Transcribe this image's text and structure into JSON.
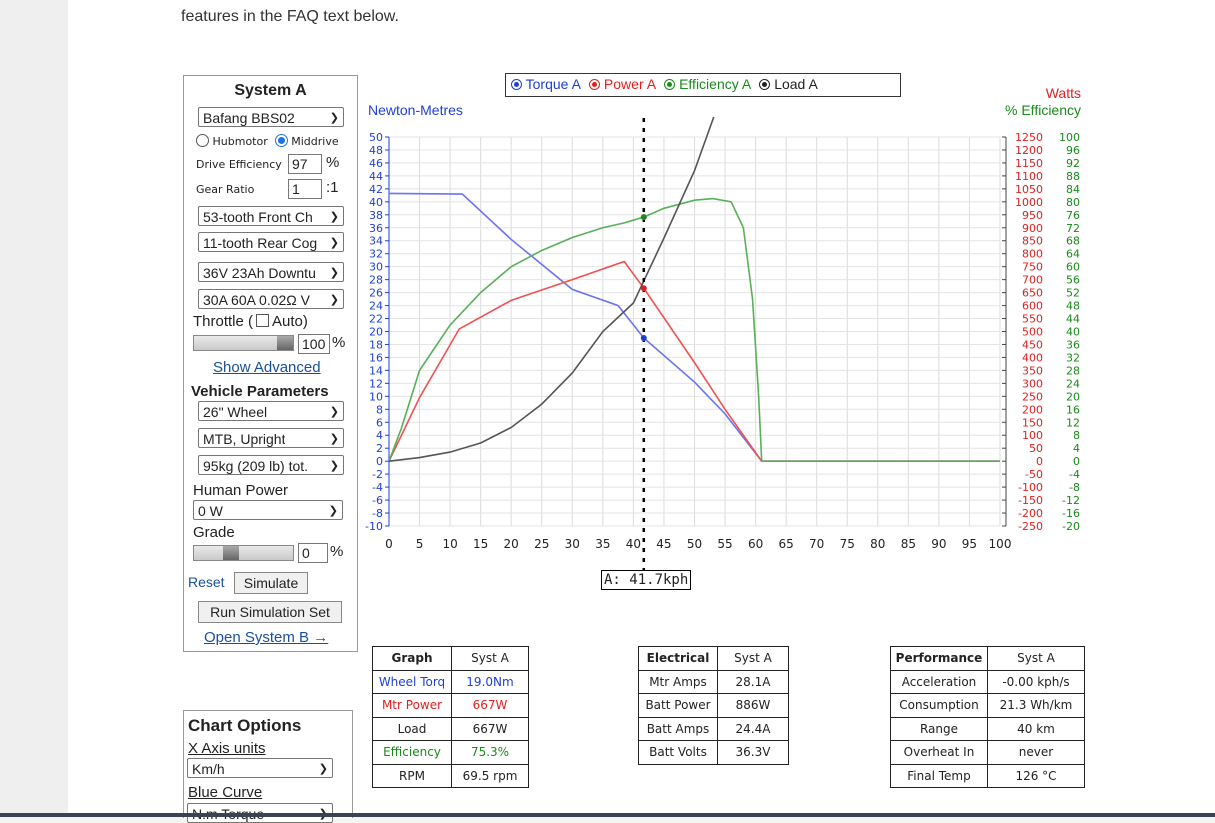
{
  "page": {
    "intro_text": "features in the FAQ text below."
  },
  "system_panel": {
    "title": "System A",
    "motor": "Bafang BBS02",
    "hubmotor_label": "Hubmotor",
    "middrive_label": "Middrive",
    "drive_efficiency_label": "Drive Efficiency",
    "drive_efficiency_value": "97",
    "percent": "%",
    "gear_ratio_label": "Gear Ratio",
    "gear_ratio_value": "1",
    "gear_ratio_suffix": ":1",
    "front_chainring": "53-tooth Front Ch",
    "rear_cog": "11-tooth Rear Cog",
    "battery": "36V 23Ah Downtu",
    "controller": "30A 60A 0.02Ω V",
    "throttle_label": "Throttle (",
    "throttle_auto_label": "Auto)",
    "throttle_value": "100",
    "show_advanced": "Show Advanced",
    "vehicle_parameters_heading": "Vehicle Parameters",
    "wheel": "26\"  Wheel",
    "frame": "MTB, Upright",
    "weight": "95kg (209 lb) tot.",
    "human_power_label": "Human Power",
    "human_power": "0 W",
    "grade_label": "Grade",
    "grade_value": "0",
    "reset": "Reset",
    "simulate": "Simulate",
    "run_simulation_set": "Run Simulation Set",
    "open_system_b": "Open System B →"
  },
  "chart_options": {
    "title": "Chart Options",
    "x_axis_units_label": "X Axis units",
    "x_axis_units": "Km/h",
    "blue_curve_label": "Blue Curve",
    "blue_curve": "N.m Torque"
  },
  "legend": {
    "items": [
      {
        "label": "Torque A",
        "color": "#1f3fd6"
      },
      {
        "label": "Power A",
        "color": "#e02020"
      },
      {
        "label": "Efficiency A",
        "color": "#1a8a1a"
      },
      {
        "label": "Load A",
        "color": "#222222"
      }
    ]
  },
  "chart_data": {
    "type": "line",
    "xlabel": "",
    "x_ticks": [
      "0",
      "5",
      "10",
      "15",
      "20",
      "25",
      "30",
      "35",
      "40",
      "45",
      "50",
      "55",
      "60",
      "65",
      "70",
      "75",
      "80",
      "85",
      "90",
      "95",
      "100"
    ],
    "left_axis_label": "Newton-Metres",
    "right_axis_labels": [
      "Watts",
      "% Efficiency"
    ],
    "xlim": [
      0,
      100
    ],
    "ylim_nm": [
      -10,
      50
    ],
    "ylim_watts": [
      -250,
      1250
    ],
    "ylim_eff": [
      -20,
      100
    ],
    "left_ticks": [
      "-10",
      "-8",
      "-6",
      "-4",
      "-2",
      "0",
      "2",
      "4",
      "6",
      "8",
      "10",
      "12",
      "14",
      "16",
      "18",
      "20",
      "22",
      "24",
      "26",
      "28",
      "30",
      "32",
      "34",
      "36",
      "38",
      "40",
      "42",
      "44",
      "46",
      "48",
      "50"
    ],
    "watts_ticks": [
      "1250",
      "1200",
      "1150",
      "1100",
      "1050",
      "1000",
      "950",
      "900",
      "850",
      "800",
      "750",
      "700",
      "650",
      "600",
      "550",
      "500",
      "450",
      "400",
      "350",
      "300",
      "250",
      "200",
      "150",
      "100",
      "50",
      "0",
      "-50",
      "-100",
      "-150",
      "-200",
      "-250"
    ],
    "eff_ticks": [
      "100",
      "96",
      "92",
      "88",
      "84",
      "80",
      "76",
      "72",
      "68",
      "64",
      "60",
      "56",
      "52",
      "48",
      "44",
      "40",
      "36",
      "32",
      "28",
      "24",
      "20",
      "16",
      "12",
      "8",
      "4",
      "0",
      "-4",
      "-8",
      "-12",
      "-16",
      "-20"
    ],
    "grid": true,
    "marker_x": 41.7,
    "marker_label": "A: 41.7kph",
    "series": [
      {
        "name": "Torque A",
        "color": "#6a73f0",
        "axis": "nm",
        "x": [
          0,
          12,
          20,
          30,
          37.5,
          41.7,
          50,
          55,
          61,
          100
        ],
        "y": [
          41.3,
          41.2,
          34.2,
          26.5,
          24.0,
          19.0,
          12.2,
          7.3,
          0,
          0
        ]
      },
      {
        "name": "Power A",
        "color": "#f05050",
        "axis": "watts",
        "x": [
          0,
          5,
          11.5,
          20,
          30,
          38.5,
          41.7,
          50,
          55,
          61,
          100
        ],
        "y": [
          0,
          245,
          510,
          620,
          700,
          770,
          667,
          380,
          200,
          0,
          0
        ]
      },
      {
        "name": "Efficiency A",
        "color": "#58b058",
        "axis": "eff",
        "x": [
          0,
          2,
          5,
          10,
          15,
          20,
          25,
          30,
          35,
          38.5,
          41.7,
          45,
          50,
          53,
          56,
          58,
          59.5,
          60.5,
          61,
          100
        ],
        "y": [
          0,
          10,
          28,
          42,
          52,
          60,
          65,
          69,
          72,
          73.5,
          75.3,
          78,
          80.5,
          81,
          80,
          72,
          50,
          20,
          0,
          0
        ]
      },
      {
        "name": "Load A",
        "color": "#555555",
        "axis": "watts",
        "x": [
          0,
          5,
          10,
          15,
          20,
          25,
          30,
          35,
          40,
          45,
          50,
          53.5
        ],
        "y": [
          0,
          14,
          35,
          70,
          130,
          220,
          340,
          500,
          610,
          860,
          1120,
          1350
        ]
      }
    ],
    "points_at_marker": [
      {
        "series": "Torque A",
        "axis": "nm",
        "y": 19.0,
        "color": "#1f3fd6"
      },
      {
        "series": "Power A",
        "axis": "watts",
        "y": 667,
        "color": "#e02020"
      },
      {
        "series": "Efficiency A",
        "axis": "eff",
        "y": 75.3,
        "color": "#1a8a1a"
      }
    ]
  },
  "tables": {
    "graph": {
      "headers": [
        "Graph",
        "Syst A"
      ],
      "rows": [
        {
          "label": "Wheel Torq",
          "value": "19.0Nm",
          "color": "#1f3fd6"
        },
        {
          "label": "Mtr Power",
          "value": "667W",
          "color": "#e02020"
        },
        {
          "label": "Load",
          "value": "667W",
          "color": "#222222"
        },
        {
          "label": "Efficiency",
          "value": "75.3%",
          "color": "#1a8a1a"
        },
        {
          "label": "RPM",
          "value": "69.5 rpm",
          "color": "#222222"
        }
      ]
    },
    "electrical": {
      "headers": [
        "Electrical",
        "Syst A"
      ],
      "rows": [
        {
          "label": "Mtr Amps",
          "value": "28.1A"
        },
        {
          "label": "Batt Power",
          "value": "886W"
        },
        {
          "label": "Batt Amps",
          "value": "24.4A"
        },
        {
          "label": "Batt Volts",
          "value": "36.3V"
        }
      ]
    },
    "performance": {
      "headers": [
        "Performance",
        "Syst A"
      ],
      "rows": [
        {
          "label": "Acceleration",
          "value": "-0.00 kph/s"
        },
        {
          "label": "Consumption",
          "value": "21.3 Wh/km"
        },
        {
          "label": "Range",
          "value": "40 km"
        },
        {
          "label": "Overheat In",
          "value": "never"
        },
        {
          "label": "Final Temp",
          "value": "126 °C"
        }
      ]
    }
  }
}
